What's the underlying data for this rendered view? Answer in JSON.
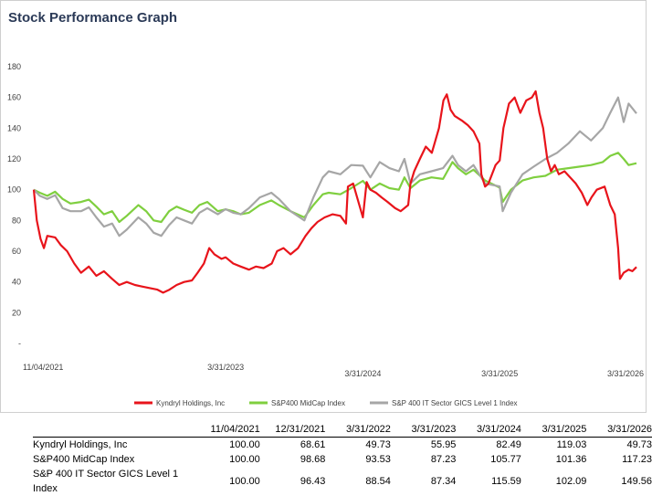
{
  "title": "Stock Performance Graph",
  "chart_data": {
    "type": "line",
    "ylim": [
      0,
      180
    ],
    "yticks": [
      {
        "value": 0,
        "label": "-"
      },
      {
        "value": 20,
        "label": "20"
      },
      {
        "value": 40,
        "label": "40"
      },
      {
        "value": 60,
        "label": "60"
      },
      {
        "value": 80,
        "label": "80"
      },
      {
        "value": 100,
        "label": "100"
      },
      {
        "value": 120,
        "label": "120"
      },
      {
        "value": 140,
        "label": "140"
      },
      {
        "value": 160,
        "label": "160"
      },
      {
        "value": 180,
        "label": "180"
      }
    ],
    "x_range": [
      "2021-11-04",
      "2026-03-31"
    ],
    "xticks": [
      {
        "date": "2021-11-04",
        "label": "11/04/2021",
        "row": 0
      },
      {
        "date": "2023-03-31",
        "label": "3/31/2023",
        "row": 0
      },
      {
        "date": "2024-03-31",
        "label": "3/31/2024",
        "row": 1
      },
      {
        "date": "2025-03-31",
        "label": "3/31/2025",
        "row": 1
      },
      {
        "date": "2026-03-31",
        "label": "3/31/2026",
        "row": 1
      }
    ],
    "legend_position": "bottom",
    "series": [
      {
        "name": "Kyndryl Holdings, Inc",
        "color": "#e8141b",
        "points": [
          [
            "2021-11-04",
            100
          ],
          [
            "2021-11-12",
            80
          ],
          [
            "2021-11-22",
            68
          ],
          [
            "2021-12-01",
            62
          ],
          [
            "2021-12-10",
            70
          ],
          [
            "2021-12-31",
            69
          ],
          [
            "2022-01-15",
            64
          ],
          [
            "2022-02-01",
            60
          ],
          [
            "2022-02-20",
            52
          ],
          [
            "2022-03-10",
            46
          ],
          [
            "2022-03-31",
            50
          ],
          [
            "2022-04-20",
            44
          ],
          [
            "2022-05-10",
            47
          ],
          [
            "2022-06-01",
            42
          ],
          [
            "2022-06-20",
            38
          ],
          [
            "2022-07-10",
            40
          ],
          [
            "2022-08-01",
            38
          ],
          [
            "2022-08-20",
            37
          ],
          [
            "2022-09-10",
            36
          ],
          [
            "2022-09-30",
            35
          ],
          [
            "2022-10-15",
            33
          ],
          [
            "2022-11-01",
            35
          ],
          [
            "2022-11-20",
            38
          ],
          [
            "2022-12-10",
            40
          ],
          [
            "2022-12-31",
            41
          ],
          [
            "2023-01-15",
            46
          ],
          [
            "2023-02-01",
            52
          ],
          [
            "2023-02-15",
            62
          ],
          [
            "2023-03-01",
            58
          ],
          [
            "2023-03-20",
            55
          ],
          [
            "2023-03-31",
            56
          ],
          [
            "2023-04-20",
            52
          ],
          [
            "2023-05-10",
            50
          ],
          [
            "2023-06-01",
            48
          ],
          [
            "2023-06-20",
            50
          ],
          [
            "2023-07-10",
            49
          ],
          [
            "2023-08-01",
            52
          ],
          [
            "2023-08-15",
            60
          ],
          [
            "2023-09-01",
            62
          ],
          [
            "2023-09-20",
            58
          ],
          [
            "2023-10-10",
            62
          ],
          [
            "2023-10-30",
            70
          ],
          [
            "2023-11-15",
            75
          ],
          [
            "2023-12-01",
            79
          ],
          [
            "2023-12-20",
            82
          ],
          [
            "2024-01-10",
            84
          ],
          [
            "2024-01-31",
            83
          ],
          [
            "2024-02-15",
            78
          ],
          [
            "2024-02-20",
            102
          ],
          [
            "2024-03-05",
            104
          ],
          [
            "2024-03-31",
            82
          ],
          [
            "2024-04-10",
            105
          ],
          [
            "2024-04-20",
            100
          ],
          [
            "2024-05-05",
            98
          ],
          [
            "2024-05-20",
            95
          ],
          [
            "2024-06-05",
            92
          ],
          [
            "2024-06-25",
            88
          ],
          [
            "2024-07-10",
            86
          ],
          [
            "2024-07-30",
            90
          ],
          [
            "2024-08-05",
            104
          ],
          [
            "2024-08-15",
            112
          ],
          [
            "2024-08-30",
            120
          ],
          [
            "2024-09-15",
            128
          ],
          [
            "2024-10-01",
            124
          ],
          [
            "2024-10-20",
            140
          ],
          [
            "2024-11-01",
            158
          ],
          [
            "2024-11-10",
            162
          ],
          [
            "2024-11-20",
            152
          ],
          [
            "2024-12-01",
            148
          ],
          [
            "2024-12-20",
            145
          ],
          [
            "2025-01-05",
            142
          ],
          [
            "2025-01-20",
            138
          ],
          [
            "2025-02-05",
            130
          ],
          [
            "2025-02-10",
            110
          ],
          [
            "2025-02-20",
            102
          ],
          [
            "2025-03-01",
            104
          ],
          [
            "2025-03-20",
            116
          ],
          [
            "2025-03-31",
            119
          ],
          [
            "2025-04-10",
            140
          ],
          [
            "2025-04-25",
            156
          ],
          [
            "2025-05-10",
            160
          ],
          [
            "2025-05-25",
            150
          ],
          [
            "2025-06-10",
            158
          ],
          [
            "2025-06-25",
            160
          ],
          [
            "2025-07-05",
            164
          ],
          [
            "2025-07-15",
            150
          ],
          [
            "2025-07-25",
            140
          ],
          [
            "2025-08-05",
            120
          ],
          [
            "2025-08-15",
            112
          ],
          [
            "2025-08-25",
            116
          ],
          [
            "2025-09-05",
            110
          ],
          [
            "2025-09-20",
            112
          ],
          [
            "2025-10-05",
            108
          ],
          [
            "2025-10-20",
            104
          ],
          [
            "2025-11-05",
            98
          ],
          [
            "2025-11-20",
            90
          ],
          [
            "2025-12-01",
            95
          ],
          [
            "2025-12-15",
            100
          ],
          [
            "2026-01-05",
            102
          ],
          [
            "2026-01-20",
            90
          ],
          [
            "2026-02-01",
            84
          ],
          [
            "2026-02-10",
            62
          ],
          [
            "2026-02-15",
            42
          ],
          [
            "2026-02-25",
            46
          ],
          [
            "2026-03-10",
            48
          ],
          [
            "2026-03-20",
            47
          ],
          [
            "2026-03-31",
            49.73
          ]
        ]
      },
      {
        "name": "S&P400 MidCap Index",
        "color": "#7fcf3f",
        "points": [
          [
            "2021-11-04",
            100
          ],
          [
            "2021-11-20",
            98
          ],
          [
            "2021-12-10",
            96
          ],
          [
            "2021-12-31",
            98.68
          ],
          [
            "2022-01-20",
            94
          ],
          [
            "2022-02-10",
            91
          ],
          [
            "2022-03-10",
            92
          ],
          [
            "2022-03-31",
            93.53
          ],
          [
            "2022-04-20",
            89
          ],
          [
            "2022-05-10",
            84
          ],
          [
            "2022-06-01",
            86
          ],
          [
            "2022-06-20",
            79
          ],
          [
            "2022-07-10",
            83
          ],
          [
            "2022-08-10",
            90
          ],
          [
            "2022-08-31",
            86
          ],
          [
            "2022-09-20",
            80
          ],
          [
            "2022-10-10",
            79
          ],
          [
            "2022-10-31",
            86
          ],
          [
            "2022-11-20",
            89
          ],
          [
            "2022-12-10",
            87
          ],
          [
            "2022-12-31",
            85
          ],
          [
            "2023-01-20",
            90
          ],
          [
            "2023-02-10",
            92
          ],
          [
            "2023-03-10",
            86
          ],
          [
            "2023-03-31",
            87.23
          ],
          [
            "2023-04-20",
            86
          ],
          [
            "2023-05-10",
            84
          ],
          [
            "2023-06-01",
            85
          ],
          [
            "2023-06-30",
            90
          ],
          [
            "2023-07-31",
            93
          ],
          [
            "2023-08-20",
            90
          ],
          [
            "2023-09-20",
            86
          ],
          [
            "2023-10-27",
            82
          ],
          [
            "2023-11-20",
            90
          ],
          [
            "2023-12-15",
            97
          ],
          [
            "2023-12-31",
            98
          ],
          [
            "2024-01-31",
            97
          ],
          [
            "2024-02-29",
            101
          ],
          [
            "2024-03-31",
            105.77
          ],
          [
            "2024-04-20",
            100
          ],
          [
            "2024-05-15",
            104
          ],
          [
            "2024-06-10",
            101
          ],
          [
            "2024-07-05",
            100
          ],
          [
            "2024-07-20",
            108
          ],
          [
            "2024-08-05",
            101
          ],
          [
            "2024-08-30",
            106
          ],
          [
            "2024-09-30",
            108
          ],
          [
            "2024-10-31",
            107
          ],
          [
            "2024-11-25",
            118
          ],
          [
            "2024-12-10",
            114
          ],
          [
            "2024-12-31",
            110
          ],
          [
            "2025-01-20",
            113
          ],
          [
            "2025-02-20",
            106
          ],
          [
            "2025-03-31",
            101.36
          ],
          [
            "2025-04-08",
            92
          ],
          [
            "2025-04-30",
            100
          ],
          [
            "2025-05-31",
            106
          ],
          [
            "2025-06-30",
            108
          ],
          [
            "2025-07-31",
            109
          ],
          [
            "2025-08-31",
            113
          ],
          [
            "2025-09-30",
            114
          ],
          [
            "2025-10-31",
            115
          ],
          [
            "2025-11-30",
            116
          ],
          [
            "2025-12-31",
            118
          ],
          [
            "2026-01-20",
            122
          ],
          [
            "2026-02-10",
            124
          ],
          [
            "2026-02-25",
            120
          ],
          [
            "2026-03-10",
            116
          ],
          [
            "2026-03-31",
            117.23
          ]
        ]
      },
      {
        "name": "S&P 400 IT Sector GICS Level 1 Index",
        "color": "#a6a6a6",
        "points": [
          [
            "2021-11-04",
            100
          ],
          [
            "2021-11-20",
            96
          ],
          [
            "2021-12-10",
            94
          ],
          [
            "2021-12-31",
            96.43
          ],
          [
            "2022-01-20",
            88
          ],
          [
            "2022-02-10",
            86
          ],
          [
            "2022-03-10",
            86
          ],
          [
            "2022-03-31",
            88.54
          ],
          [
            "2022-04-20",
            82
          ],
          [
            "2022-05-10",
            76
          ],
          [
            "2022-06-01",
            78
          ],
          [
            "2022-06-20",
            70
          ],
          [
            "2022-07-10",
            74
          ],
          [
            "2022-08-10",
            82
          ],
          [
            "2022-08-31",
            78
          ],
          [
            "2022-09-20",
            72
          ],
          [
            "2022-10-10",
            70
          ],
          [
            "2022-10-31",
            77
          ],
          [
            "2022-11-20",
            82
          ],
          [
            "2022-12-10",
            80
          ],
          [
            "2022-12-31",
            78
          ],
          [
            "2023-01-20",
            85
          ],
          [
            "2023-02-10",
            88
          ],
          [
            "2023-03-10",
            84
          ],
          [
            "2023-03-31",
            87.34
          ],
          [
            "2023-04-20",
            85
          ],
          [
            "2023-05-10",
            84
          ],
          [
            "2023-06-01",
            88
          ],
          [
            "2023-06-30",
            95
          ],
          [
            "2023-07-31",
            98
          ],
          [
            "2023-08-20",
            94
          ],
          [
            "2023-09-20",
            86
          ],
          [
            "2023-10-27",
            80
          ],
          [
            "2023-11-20",
            95
          ],
          [
            "2023-12-15",
            108
          ],
          [
            "2023-12-31",
            112
          ],
          [
            "2024-01-31",
            110
          ],
          [
            "2024-02-29",
            116
          ],
          [
            "2024-03-31",
            115.59
          ],
          [
            "2024-04-20",
            108
          ],
          [
            "2024-05-15",
            118
          ],
          [
            "2024-06-10",
            114
          ],
          [
            "2024-07-05",
            112
          ],
          [
            "2024-07-20",
            120
          ],
          [
            "2024-08-05",
            104
          ],
          [
            "2024-08-30",
            110
          ],
          [
            "2024-09-30",
            112
          ],
          [
            "2024-10-31",
            114
          ],
          [
            "2024-11-25",
            122
          ],
          [
            "2024-12-10",
            116
          ],
          [
            "2024-12-31",
            112
          ],
          [
            "2025-01-20",
            116
          ],
          [
            "2025-02-20",
            104
          ],
          [
            "2025-03-31",
            102.09
          ],
          [
            "2025-04-08",
            86
          ],
          [
            "2025-04-30",
            98
          ],
          [
            "2025-05-31",
            110
          ],
          [
            "2025-06-30",
            115
          ],
          [
            "2025-07-31",
            120
          ],
          [
            "2025-08-31",
            124
          ],
          [
            "2025-09-30",
            130
          ],
          [
            "2025-10-31",
            138
          ],
          [
            "2025-11-30",
            132
          ],
          [
            "2025-12-31",
            140
          ],
          [
            "2026-01-20",
            150
          ],
          [
            "2026-02-10",
            160
          ],
          [
            "2026-02-25",
            144
          ],
          [
            "2026-03-10",
            156
          ],
          [
            "2026-03-31",
            149.56
          ]
        ]
      }
    ]
  },
  "table": {
    "headers": [
      "11/04/2021",
      "12/31/2021",
      "3/31/2022",
      "3/31/2023",
      "3/31/2024",
      "3/31/2025",
      "3/31/2026"
    ],
    "rows": [
      {
        "name": "Kyndryl Holdings, Inc",
        "values": [
          "100.00",
          "68.61",
          "49.73",
          "55.95",
          "82.49",
          "119.03",
          "49.73"
        ]
      },
      {
        "name": "S&P400 MidCap Index",
        "values": [
          "100.00",
          "98.68",
          "93.53",
          "87.23",
          "105.77",
          "101.36",
          "117.23"
        ]
      },
      {
        "name": "S&P 400 IT Sector GICS Level 1 Index",
        "values": [
          "100.00",
          "96.43",
          "88.54",
          "87.34",
          "115.59",
          "102.09",
          "149.56"
        ]
      }
    ]
  }
}
